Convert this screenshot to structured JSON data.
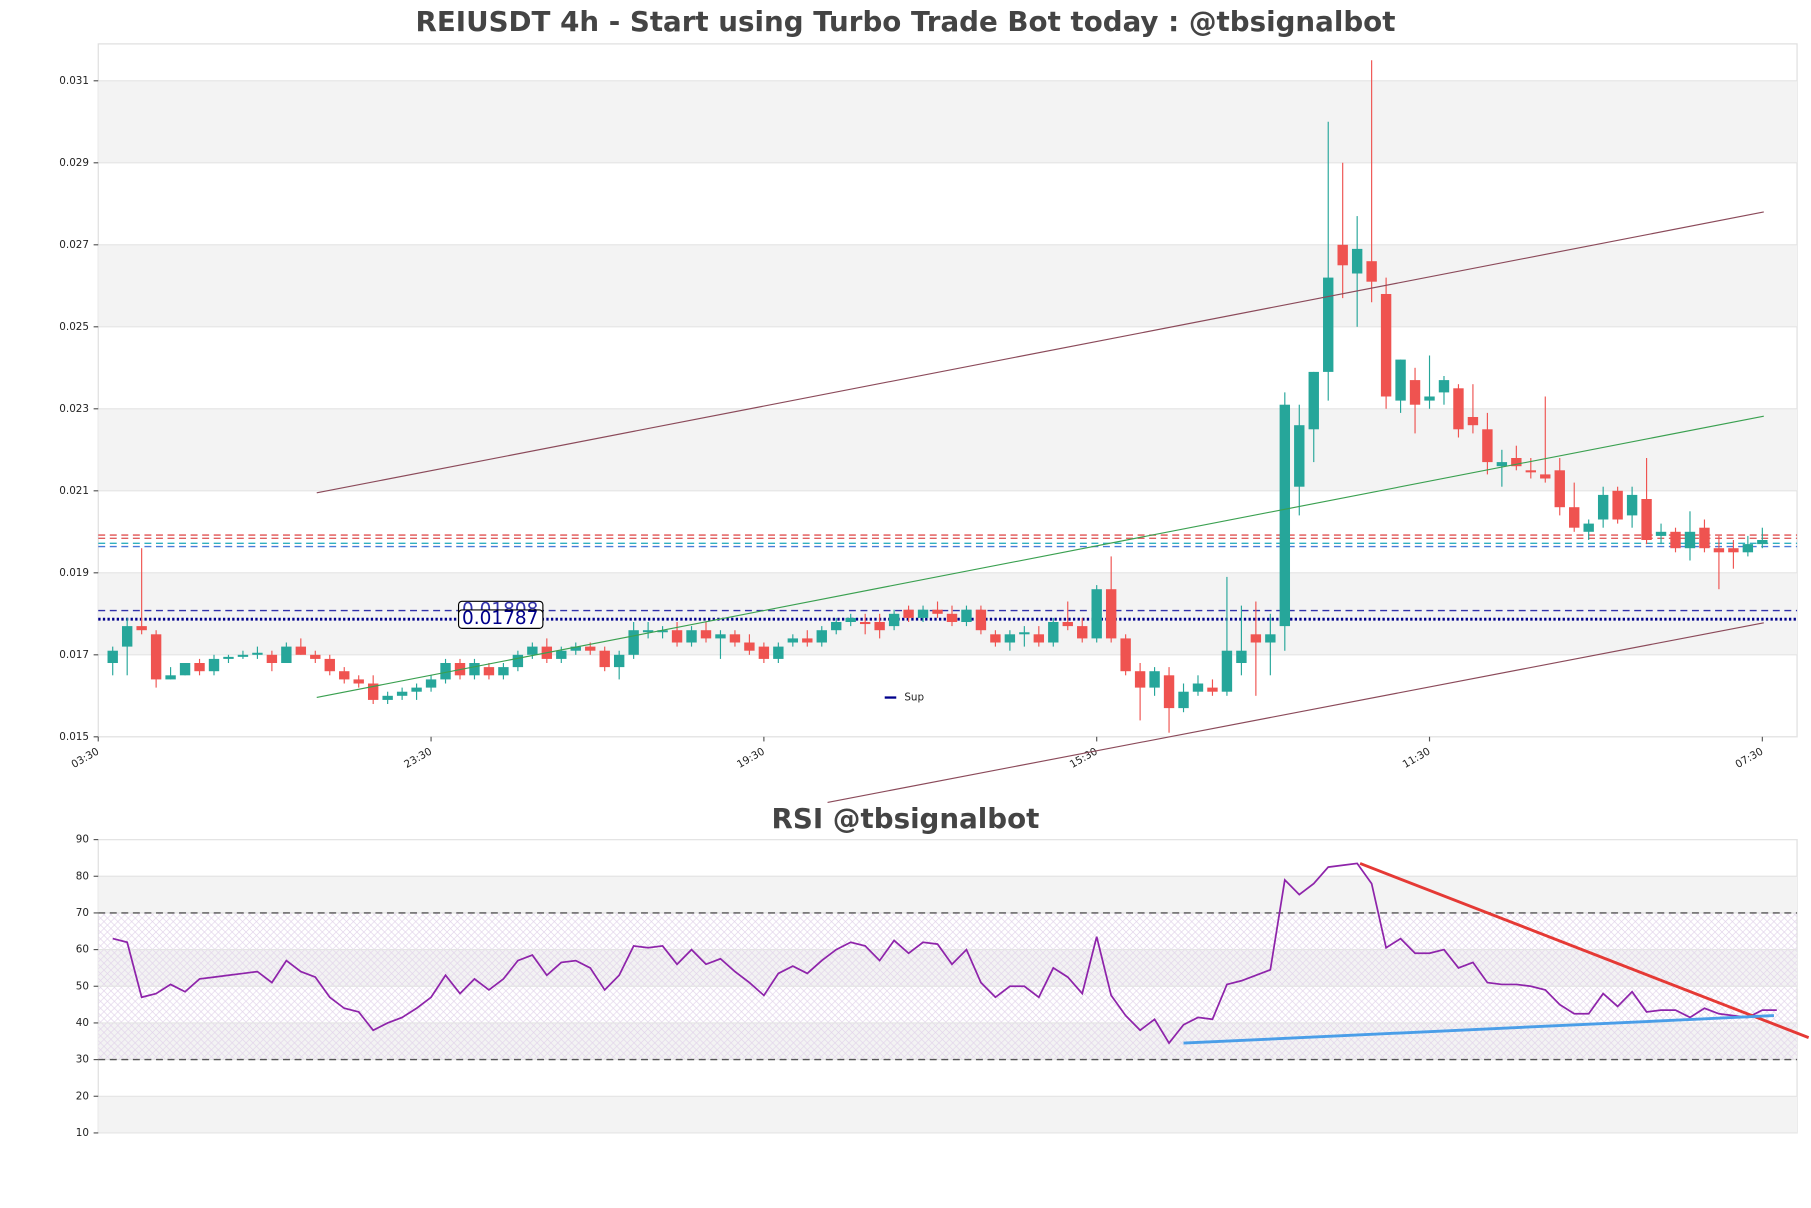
{
  "chart_data": [
    {
      "type": "candlestick",
      "title": "REIUSDT 4h - Start using Turbo Trade Bot today : @tbsignalbot",
      "up_color": "#26a69a",
      "down_color": "#ef5350",
      "xlim": [
        -1,
        116.4
      ],
      "xticks": [
        {
          "value": -1,
          "label": "03:30"
        },
        {
          "value": 22,
          "label": "23:30"
        },
        {
          "value": 45,
          "label": "19:30"
        },
        {
          "value": 68,
          "label": "15:30"
        },
        {
          "value": 91,
          "label": "11:30"
        },
        {
          "value": 114,
          "label": "07:30"
        }
      ],
      "ylim": [
        0.015,
        0.0319
      ],
      "yticks": [
        0.015,
        0.017,
        0.019,
        0.021,
        0.023,
        0.025,
        0.027,
        0.029,
        0.031
      ],
      "grid": true,
      "candles": [
        [
          0.0168,
          0.0172,
          0.0165,
          0.0171
        ],
        [
          0.0172,
          0.0179,
          0.0165,
          0.0177
        ],
        [
          0.0177,
          0.0196,
          0.0175,
          0.0176
        ],
        [
          0.0175,
          0.0176,
          0.0162,
          0.0164
        ],
        [
          0.0164,
          0.0167,
          0.0164,
          0.0165
        ],
        [
          0.0165,
          0.0168,
          0.0165,
          0.0168
        ],
        [
          0.0168,
          0.0169,
          0.0165,
          0.0166
        ],
        [
          0.0166,
          0.017,
          0.0165,
          0.0169
        ],
        [
          0.0169,
          0.017,
          0.0168,
          0.01695
        ],
        [
          0.01695,
          0.0171,
          0.0169,
          0.017
        ],
        [
          0.017,
          0.0172,
          0.0169,
          0.01705
        ],
        [
          0.017,
          0.0171,
          0.0166,
          0.0168
        ],
        [
          0.0168,
          0.0173,
          0.0168,
          0.0172
        ],
        [
          0.0172,
          0.0174,
          0.017,
          0.017
        ],
        [
          0.017,
          0.0171,
          0.0168,
          0.0169
        ],
        [
          0.0169,
          0.017,
          0.0165,
          0.0166
        ],
        [
          0.0166,
          0.0167,
          0.0163,
          0.0164
        ],
        [
          0.0164,
          0.0165,
          0.0162,
          0.0163
        ],
        [
          0.0163,
          0.0165,
          0.0158,
          0.0159
        ],
        [
          0.0159,
          0.0161,
          0.0158,
          0.016
        ],
        [
          0.016,
          0.0162,
          0.0159,
          0.0161
        ],
        [
          0.0161,
          0.0163,
          0.0159,
          0.0162
        ],
        [
          0.0162,
          0.0165,
          0.0161,
          0.0164
        ],
        [
          0.0164,
          0.0169,
          0.0163,
          0.0168
        ],
        [
          0.0168,
          0.0169,
          0.0164,
          0.0165
        ],
        [
          0.0165,
          0.0169,
          0.0164,
          0.0168
        ],
        [
          0.0167,
          0.0168,
          0.0164,
          0.0165
        ],
        [
          0.0165,
          0.0168,
          0.0164,
          0.0167
        ],
        [
          0.0167,
          0.0171,
          0.0166,
          0.017
        ],
        [
          0.017,
          0.0173,
          0.0169,
          0.0172
        ],
        [
          0.0172,
          0.0174,
          0.0168,
          0.0169
        ],
        [
          0.0169,
          0.0172,
          0.0168,
          0.0171
        ],
        [
          0.0171,
          0.0173,
          0.017,
          0.0172
        ],
        [
          0.0172,
          0.0173,
          0.017,
          0.0171
        ],
        [
          0.0171,
          0.0172,
          0.0166,
          0.0167
        ],
        [
          0.0167,
          0.0171,
          0.0164,
          0.017
        ],
        [
          0.017,
          0.0178,
          0.0169,
          0.0176
        ],
        [
          0.01755,
          0.0178,
          0.0174,
          0.0176
        ],
        [
          0.01755,
          0.0177,
          0.0174,
          0.0176
        ],
        [
          0.0176,
          0.0178,
          0.0172,
          0.0173
        ],
        [
          0.0173,
          0.0177,
          0.0172,
          0.0176
        ],
        [
          0.0176,
          0.0178,
          0.0173,
          0.0174
        ],
        [
          0.0174,
          0.0176,
          0.0169,
          0.0175
        ],
        [
          0.0175,
          0.0176,
          0.0172,
          0.0173
        ],
        [
          0.0173,
          0.0175,
          0.017,
          0.0171
        ],
        [
          0.0172,
          0.0173,
          0.0168,
          0.0169
        ],
        [
          0.0169,
          0.0173,
          0.0168,
          0.0172
        ],
        [
          0.0173,
          0.0175,
          0.0172,
          0.0174
        ],
        [
          0.0174,
          0.0176,
          0.0172,
          0.0173
        ],
        [
          0.0173,
          0.0177,
          0.0172,
          0.0176
        ],
        [
          0.0176,
          0.0179,
          0.0175,
          0.0178
        ],
        [
          0.0178,
          0.018,
          0.0177,
          0.0179
        ],
        [
          0.0178,
          0.018,
          0.0175,
          0.01775
        ],
        [
          0.0178,
          0.018,
          0.0174,
          0.0176
        ],
        [
          0.0177,
          0.0181,
          0.0176,
          0.018
        ],
        [
          0.0181,
          0.0182,
          0.0178,
          0.0179
        ],
        [
          0.0179,
          0.0182,
          0.0178,
          0.0181
        ],
        [
          0.0181,
          0.0183,
          0.0179,
          0.018
        ],
        [
          0.018,
          0.0182,
          0.0177,
          0.0178
        ],
        [
          0.0178,
          0.0182,
          0.0177,
          0.0181
        ],
        [
          0.0181,
          0.0182,
          0.0175,
          0.0176
        ],
        [
          0.0175,
          0.0176,
          0.0172,
          0.0173
        ],
        [
          0.0173,
          0.0176,
          0.0171,
          0.0175
        ],
        [
          0.0175,
          0.0177,
          0.0172,
          0.01755
        ],
        [
          0.0175,
          0.0177,
          0.0172,
          0.0173
        ],
        [
          0.0173,
          0.0179,
          0.0172,
          0.0178
        ],
        [
          0.0178,
          0.0183,
          0.0176,
          0.0177
        ],
        [
          0.0177,
          0.0179,
          0.0173,
          0.0174
        ],
        [
          0.0174,
          0.0187,
          0.0173,
          0.0186
        ],
        [
          0.0186,
          0.0194,
          0.0173,
          0.0174
        ],
        [
          0.0174,
          0.0175,
          0.0165,
          0.0166
        ],
        [
          0.0166,
          0.0168,
          0.0154,
          0.0162
        ],
        [
          0.0162,
          0.0167,
          0.016,
          0.0166
        ],
        [
          0.0165,
          0.0167,
          0.0151,
          0.0157
        ],
        [
          0.0157,
          0.0163,
          0.0156,
          0.0161
        ],
        [
          0.0161,
          0.0165,
          0.016,
          0.0163
        ],
        [
          0.0162,
          0.0164,
          0.016,
          0.0161
        ],
        [
          0.0161,
          0.0189,
          0.016,
          0.0171
        ],
        [
          0.0168,
          0.0182,
          0.0165,
          0.0171
        ],
        [
          0.0175,
          0.0183,
          0.016,
          0.0173
        ],
        [
          0.0173,
          0.018,
          0.0165,
          0.0175
        ],
        [
          0.0177,
          0.0234,
          0.0171,
          0.0231
        ],
        [
          0.0211,
          0.0231,
          0.0204,
          0.0226
        ],
        [
          0.0225,
          0.0239,
          0.0217,
          0.0239
        ],
        [
          0.0239,
          0.03,
          0.0232,
          0.0262
        ],
        [
          0.027,
          0.029,
          0.0257,
          0.0265
        ],
        [
          0.0263,
          0.0277,
          0.025,
          0.0269
        ],
        [
          0.0266,
          0.0315,
          0.0256,
          0.0261
        ],
        [
          0.0258,
          0.0262,
          0.023,
          0.0233
        ],
        [
          0.0232,
          0.0242,
          0.0229,
          0.0242
        ],
        [
          0.0237,
          0.024,
          0.0224,
          0.0231
        ],
        [
          0.0232,
          0.0243,
          0.023,
          0.0233
        ],
        [
          0.0234,
          0.0238,
          0.0231,
          0.0237
        ],
        [
          0.0235,
          0.0236,
          0.0223,
          0.0225
        ],
        [
          0.0228,
          0.0236,
          0.0224,
          0.0226
        ],
        [
          0.0225,
          0.0229,
          0.0214,
          0.0217
        ],
        [
          0.0216,
          0.022,
          0.0211,
          0.0217
        ],
        [
          0.0218,
          0.0221,
          0.0215,
          0.0216
        ],
        [
          0.0215,
          0.0218,
          0.0213,
          0.02145
        ],
        [
          0.0214,
          0.0233,
          0.0212,
          0.0213
        ],
        [
          0.0215,
          0.0218,
          0.0204,
          0.0206
        ],
        [
          0.0206,
          0.0212,
          0.02,
          0.0201
        ],
        [
          0.02,
          0.0203,
          0.0198,
          0.0202
        ],
        [
          0.0203,
          0.0211,
          0.0201,
          0.0209
        ],
        [
          0.021,
          0.0211,
          0.0202,
          0.0203
        ],
        [
          0.0204,
          0.0211,
          0.0201,
          0.0209
        ],
        [
          0.0208,
          0.0218,
          0.0197,
          0.0198
        ],
        [
          0.0199,
          0.0202,
          0.0197,
          0.02
        ],
        [
          0.02,
          0.0201,
          0.0195,
          0.0196
        ],
        [
          0.0196,
          0.0205,
          0.0193,
          0.02
        ],
        [
          0.0201,
          0.0203,
          0.0195,
          0.0196
        ],
        [
          0.0196,
          0.0199,
          0.0186,
          0.0195
        ],
        [
          0.0196,
          0.0198,
          0.0191,
          0.0195
        ],
        [
          0.0195,
          0.0199,
          0.0194,
          0.0197
        ],
        [
          0.0197,
          0.0201,
          0.0196,
          0.0198
        ]
      ],
      "hlines": [
        {
          "value": 0.01992,
          "color": "#e05050",
          "style": "dashed"
        },
        {
          "value": 0.01984,
          "color": "#e06060",
          "style": "dashed"
        },
        {
          "value": 0.01972,
          "color": "#30b0c0",
          "style": "dashed"
        },
        {
          "value": 0.01964,
          "color": "#4a7ad8",
          "style": "dashed"
        },
        {
          "value": 0.01808,
          "label": "0.01808",
          "color": "#3333aa",
          "style": "dashed"
        },
        {
          "value": 0.01787,
          "label": "0.01787",
          "name": "Sup",
          "color": "#00008b",
          "style": "dotted"
        }
      ],
      "trendlines": [
        {
          "x": [
            14.1,
            114.1
          ],
          "y": [
            0.02095,
            0.0278
          ],
          "color": "#8b4a5a"
        },
        {
          "x": [
            14.1,
            114.1
          ],
          "y": [
            0.01596,
            0.02282
          ],
          "color": "#3aa050"
        },
        {
          "x": [
            49.4,
            114.1
          ],
          "y": [
            0.0134,
            0.01778
          ],
          "color": "#8b4a5a"
        }
      ]
    },
    {
      "type": "line",
      "title": "RSI @tbsignalbot",
      "color": "#8e24aa",
      "xlim": [
        -1,
        116.4
      ],
      "ylim": [
        10,
        90
      ],
      "yticks": [
        10,
        20,
        30,
        40,
        50,
        60,
        70,
        80,
        90
      ],
      "values": [
        63,
        62,
        47,
        48,
        50.5,
        48.5,
        52,
        52.5,
        53,
        53.5,
        54,
        51,
        57,
        54,
        52.5,
        47,
        44,
        43,
        38,
        40,
        41.5,
        44,
        47,
        53,
        48,
        52,
        49,
        52,
        57,
        58.5,
        53,
        56.5,
        57,
        55,
        49,
        53,
        61,
        60.5,
        61,
        56,
        60,
        56,
        57.5,
        54,
        51,
        47.5,
        53.5,
        55.5,
        53.5,
        57,
        60,
        62,
        61,
        57,
        62.5,
        59,
        62,
        61.5,
        56,
        60,
        51,
        47,
        50,
        50,
        47,
        55,
        52.5,
        48,
        63.5,
        47.5,
        42,
        38,
        41,
        34.5,
        39.5,
        41.5,
        41,
        50.5,
        51.5,
        53,
        54.5,
        79,
        75,
        78,
        82.5,
        83,
        83.5,
        78,
        60.5,
        63,
        59,
        59,
        60,
        55,
        56.5,
        51,
        50.5,
        50.5,
        50,
        49,
        45,
        42.5,
        42.5,
        48,
        44.5,
        48.5,
        43,
        43.5,
        43.5,
        41.5,
        44,
        42.5,
        42,
        41.5,
        43.5,
        43.5
      ],
      "hlines": [
        {
          "value": 70,
          "color": "#555555",
          "style": "dashed"
        },
        {
          "value": 30,
          "color": "#555555",
          "style": "dashed"
        }
      ],
      "trendlines": [
        {
          "x": [
            86.2,
            117.2
          ],
          "y": [
            83.5,
            36
          ],
          "color": "#e53935",
          "width": 2.5
        },
        {
          "x": [
            74,
            114.8
          ],
          "y": [
            34.5,
            42
          ],
          "color": "#4a9ee8",
          "width": 2.5
        }
      ]
    }
  ]
}
